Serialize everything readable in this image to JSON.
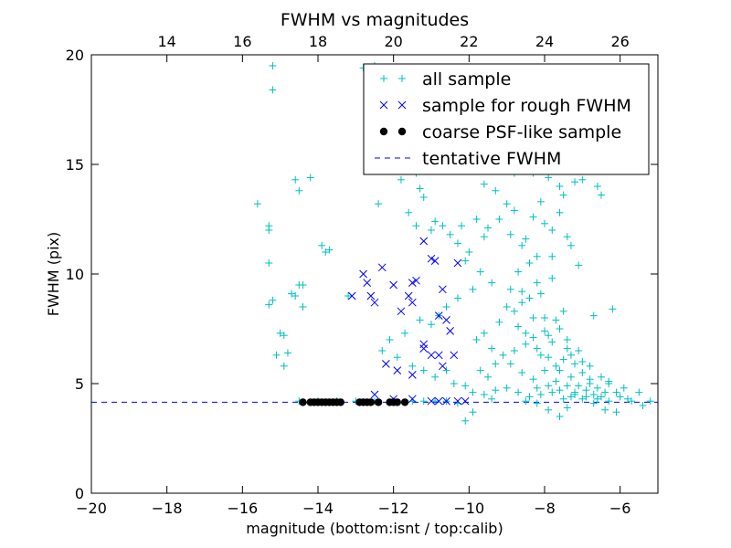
{
  "chart_data": {
    "type": "scatter",
    "title": "FWHM vs magnitudes",
    "xlabel": "magnitude (bottom:isnt / top:calib)",
    "ylabel": "FWHM (pix)",
    "xlim": [
      -20,
      -5
    ],
    "ylim": [
      0,
      20
    ],
    "x_ticks": [
      "−20",
      "−18",
      "−16",
      "−14",
      "−12",
      "−10",
      "−8",
      "−6"
    ],
    "y_ticks": [
      "0",
      "5",
      "10",
      "15",
      "20"
    ],
    "top_axis": {
      "offset_to_calib": 32,
      "ticks": [
        "14",
        "16",
        "18",
        "20",
        "22",
        "24",
        "26"
      ]
    },
    "grid": false,
    "legend_position": "top-right",
    "tentative_fwhm": 4.15,
    "colors": {
      "all_sample": "#00bfbf",
      "rough_sample": "#0000ff",
      "psf_sample": "#000000",
      "tentative": "#0000ff"
    },
    "series": [
      {
        "name": "all sample",
        "marker": "plus",
        "points": [
          [
            -15.2,
            19.5
          ],
          [
            -15.2,
            18.4
          ],
          [
            -15.6,
            13.2
          ],
          [
            -15.3,
            12.2
          ],
          [
            -15.3,
            12.0
          ],
          [
            -15.3,
            10.5
          ],
          [
            -15.2,
            8.8
          ],
          [
            -15.3,
            8.6
          ],
          [
            -15.0,
            7.3
          ],
          [
            -14.9,
            7.2
          ],
          [
            -15.1,
            6.3
          ],
          [
            -14.8,
            6.4
          ],
          [
            -14.9,
            5.8
          ],
          [
            -14.7,
            9.1
          ],
          [
            -14.6,
            9.0
          ],
          [
            -14.5,
            9.5
          ],
          [
            -14.4,
            9.5
          ],
          [
            -14.4,
            8.5
          ],
          [
            -14.6,
            14.3
          ],
          [
            -14.2,
            14.4
          ],
          [
            -14.5,
            13.8
          ],
          [
            -13.9,
            11.3
          ],
          [
            -13.8,
            11.0
          ],
          [
            -13.7,
            11.1
          ],
          [
            -13.2,
            9.0
          ],
          [
            -12.8,
            19.4
          ],
          [
            -12.5,
            19.5
          ],
          [
            -12.4,
            13.2
          ],
          [
            -11.8,
            14.3
          ],
          [
            -11.4,
            14.6
          ],
          [
            -11.3,
            13.9
          ],
          [
            -11.6,
            12.8
          ],
          [
            -11.4,
            12.2
          ],
          [
            -11.2,
            13.5
          ],
          [
            -11.0,
            12.0
          ],
          [
            -10.9,
            12.4
          ],
          [
            -10.7,
            12.2
          ],
          [
            -10.5,
            11.8
          ],
          [
            -10.3,
            11.4
          ],
          [
            -10.2,
            12.2
          ],
          [
            -10.0,
            11.0
          ],
          [
            -9.8,
            12.5
          ],
          [
            -9.6,
            11.7
          ],
          [
            -9.5,
            12.1
          ],
          [
            -9.8,
            15.8
          ],
          [
            -9.3,
            16.5
          ],
          [
            -9.1,
            15.3
          ],
          [
            -8.8,
            14.6
          ],
          [
            -8.5,
            14.9
          ],
          [
            -8.3,
            14.6
          ],
          [
            -7.9,
            14.4
          ],
          [
            -7.6,
            14.0
          ],
          [
            -7.2,
            14.2
          ],
          [
            -7.0,
            14.3
          ],
          [
            -6.6,
            14.0
          ],
          [
            -6.5,
            13.6
          ],
          [
            -6.2,
            8.4
          ],
          [
            -6.7,
            8.1
          ],
          [
            -7.1,
            10.4
          ],
          [
            -7.3,
            11.3
          ],
          [
            -7.4,
            11.7
          ],
          [
            -7.8,
            10.8
          ],
          [
            -8.2,
            10.8
          ],
          [
            -8.6,
            11.3
          ],
          [
            -8.9,
            11.8
          ],
          [
            -9.2,
            12.5
          ],
          [
            -9.4,
            9.6
          ],
          [
            -9.7,
            10.1
          ],
          [
            -9.9,
            9.3
          ],
          [
            -10.1,
            10.6
          ],
          [
            -10.3,
            8.9
          ],
          [
            -10.6,
            8.5
          ],
          [
            -10.8,
            8.1
          ],
          [
            -11.0,
            7.7
          ],
          [
            -11.3,
            7.9
          ],
          [
            -11.7,
            7.3
          ],
          [
            -12.1,
            7.0
          ],
          [
            -12.3,
            6.5
          ],
          [
            -11.9,
            6.2
          ],
          [
            -11.5,
            5.8
          ],
          [
            -11.2,
            5.6
          ],
          [
            -10.9,
            5.3
          ],
          [
            -10.6,
            5.6
          ],
          [
            -10.4,
            5.0
          ],
          [
            -10.1,
            4.9
          ],
          [
            -9.9,
            4.6
          ],
          [
            -9.6,
            4.5
          ],
          [
            -9.3,
            4.7
          ],
          [
            -9.0,
            4.8
          ],
          [
            -8.7,
            4.6
          ],
          [
            -8.4,
            4.4
          ],
          [
            -8.1,
            4.5
          ],
          [
            -7.8,
            4.6
          ],
          [
            -7.5,
            4.3
          ],
          [
            -7.2,
            4.5
          ],
          [
            -6.9,
            4.4
          ],
          [
            -6.6,
            4.3
          ],
          [
            -6.3,
            4.2
          ],
          [
            -6.0,
            4.4
          ],
          [
            -5.7,
            4.2
          ],
          [
            -5.4,
            4.0
          ],
          [
            -5.2,
            4.2
          ],
          [
            -5.5,
            4.6
          ],
          [
            -5.9,
            4.8
          ],
          [
            -6.3,
            5.1
          ],
          [
            -6.8,
            5.0
          ],
          [
            -7.4,
            3.9
          ],
          [
            -7.6,
            3.5
          ],
          [
            -7.9,
            3.8
          ],
          [
            -8.2,
            4.1
          ],
          [
            -8.5,
            4.2
          ],
          [
            -9.4,
            4.3
          ],
          [
            -9.9,
            3.7
          ],
          [
            -10.1,
            3.3
          ],
          [
            -10.3,
            4.1
          ],
          [
            -10.6,
            4.2
          ],
          [
            -10.9,
            4.2
          ],
          [
            -11.2,
            4.2
          ],
          [
            -11.5,
            4.2
          ],
          [
            -12.0,
            4.2
          ],
          [
            -12.5,
            4.2
          ],
          [
            -13.0,
            4.2
          ],
          [
            -13.5,
            4.2
          ],
          [
            -14.0,
            4.2
          ],
          [
            -14.5,
            4.2
          ],
          [
            -9.8,
            7.0
          ],
          [
            -9.6,
            7.3
          ],
          [
            -9.4,
            6.6
          ],
          [
            -9.2,
            7.8
          ],
          [
            -9.0,
            8.5
          ],
          [
            -8.8,
            8.3
          ],
          [
            -8.7,
            7.6
          ],
          [
            -8.6,
            9.2
          ],
          [
            -8.5,
            6.8
          ],
          [
            -8.4,
            8.9
          ],
          [
            -8.3,
            7.1
          ],
          [
            -8.2,
            9.6
          ],
          [
            -8.1,
            6.3
          ],
          [
            -8.0,
            8.0
          ],
          [
            -7.9,
            7.2
          ],
          [
            -7.8,
            6.9
          ],
          [
            -7.7,
            5.8
          ],
          [
            -7.6,
            7.5
          ],
          [
            -7.5,
            6.1
          ],
          [
            -7.4,
            6.6
          ],
          [
            -7.3,
            5.3
          ],
          [
            -7.2,
            5.9
          ],
          [
            -7.1,
            4.9
          ],
          [
            -7.0,
            5.5
          ],
          [
            -6.9,
            4.7
          ],
          [
            -6.8,
            5.2
          ],
          [
            -6.7,
            4.5
          ],
          [
            -6.6,
            4.8
          ],
          [
            -6.5,
            4.4
          ],
          [
            -6.4,
            4.6
          ],
          [
            -8.9,
            5.9
          ],
          [
            -8.6,
            5.5
          ],
          [
            -8.3,
            5.2
          ],
          [
            -8.0,
            5.6
          ],
          [
            -7.7,
            5.1
          ],
          [
            -7.4,
            4.9
          ],
          [
            -7.2,
            4.6
          ],
          [
            -8.8,
            6.5
          ],
          [
            -8.5,
            7.3
          ],
          [
            -8.2,
            6.6
          ],
          [
            -7.9,
            6.2
          ],
          [
            -7.6,
            5.6
          ],
          [
            -7.3,
            6.3
          ],
          [
            -7.0,
            6.0
          ],
          [
            -8.7,
            10.1
          ],
          [
            -8.4,
            10.5
          ],
          [
            -8.1,
            9.1
          ],
          [
            -7.8,
            9.8
          ],
          [
            -7.5,
            8.3
          ],
          [
            -8.9,
            9.3
          ],
          [
            -8.6,
            8.7
          ],
          [
            -8.3,
            8.0
          ],
          [
            -8.0,
            7.4
          ],
          [
            -7.7,
            7.9
          ],
          [
            -7.4,
            7.0
          ],
          [
            -7.1,
            6.5
          ],
          [
            -6.8,
            5.8
          ],
          [
            -6.5,
            5.3
          ],
          [
            -6.3,
            5.0
          ],
          [
            -6.1,
            4.6
          ],
          [
            -5.8,
            4.3
          ],
          [
            -9.1,
            6.3
          ],
          [
            -9.3,
            5.9
          ],
          [
            -9.5,
            5.3
          ],
          [
            -9.7,
            5.6
          ],
          [
            -8.2,
            4.8
          ],
          [
            -7.9,
            4.9
          ],
          [
            -7.6,
            4.7
          ],
          [
            -7.3,
            4.4
          ],
          [
            -7.0,
            4.3
          ],
          [
            -6.7,
            4.1
          ],
          [
            -6.4,
            3.8
          ],
          [
            -6.1,
            3.7
          ],
          [
            -8.5,
            11.6
          ],
          [
            -8.0,
            12.3
          ],
          [
            -7.6,
            12.8
          ],
          [
            -8.8,
            12.9
          ],
          [
            -9.3,
            13.8
          ],
          [
            -9.6,
            14.1
          ],
          [
            -9.0,
            13.2
          ],
          [
            -8.1,
            13.3
          ],
          [
            -7.5,
            13.6
          ],
          [
            -7.8,
            12.0
          ],
          [
            -8.3,
            12.6
          ]
        ]
      },
      {
        "name": "sample for rough FWHM",
        "marker": "x",
        "points": [
          [
            -13.1,
            9.0
          ],
          [
            -12.3,
            10.3
          ],
          [
            -12.7,
            9.6
          ],
          [
            -12.8,
            10.0
          ],
          [
            -12.6,
            9.0
          ],
          [
            -12.5,
            8.7
          ],
          [
            -12.0,
            9.5
          ],
          [
            -11.8,
            8.3
          ],
          [
            -11.6,
            9.0
          ],
          [
            -11.5,
            8.7
          ],
          [
            -11.4,
            9.7
          ],
          [
            -11.2,
            11.5
          ],
          [
            -11.0,
            10.7
          ],
          [
            -10.9,
            10.6
          ],
          [
            -10.7,
            9.3
          ],
          [
            -10.8,
            8.1
          ],
          [
            -10.6,
            7.9
          ],
          [
            -10.5,
            7.4
          ],
          [
            -11.2,
            6.8
          ],
          [
            -11.2,
            6.6
          ],
          [
            -11.0,
            6.3
          ],
          [
            -10.8,
            6.3
          ],
          [
            -10.7,
            5.8
          ],
          [
            -10.4,
            6.3
          ],
          [
            -12.2,
            5.9
          ],
          [
            -11.9,
            5.6
          ],
          [
            -11.5,
            5.4
          ],
          [
            -10.3,
            10.5
          ],
          [
            -11.5,
            9.6
          ],
          [
            -12.0,
            4.3
          ],
          [
            -11.5,
            4.3
          ],
          [
            -11.0,
            4.2
          ],
          [
            -10.8,
            4.2
          ],
          [
            -10.6,
            4.2
          ],
          [
            -10.3,
            4.2
          ],
          [
            -10.1,
            4.2
          ],
          [
            -12.5,
            4.5
          ]
        ]
      },
      {
        "name": "coarse PSF-like sample",
        "marker": "dot",
        "points": [
          [
            -14.4,
            4.15
          ],
          [
            -14.2,
            4.15
          ],
          [
            -14.1,
            4.15
          ],
          [
            -14.0,
            4.15
          ],
          [
            -13.9,
            4.15
          ],
          [
            -13.8,
            4.15
          ],
          [
            -13.7,
            4.15
          ],
          [
            -13.6,
            4.15
          ],
          [
            -13.5,
            4.15
          ],
          [
            -13.4,
            4.15
          ],
          [
            -12.9,
            4.15
          ],
          [
            -12.8,
            4.15
          ],
          [
            -12.7,
            4.15
          ],
          [
            -12.6,
            4.15
          ],
          [
            -12.4,
            4.15
          ],
          [
            -12.1,
            4.15
          ],
          [
            -12.0,
            4.15
          ],
          [
            -11.9,
            4.15
          ],
          [
            -11.7,
            4.15
          ]
        ]
      },
      {
        "name": "tentative FWHM",
        "marker": "dashed-line"
      }
    ]
  }
}
